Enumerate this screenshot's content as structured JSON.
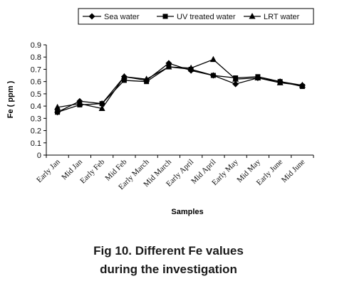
{
  "chart_data": {
    "type": "line",
    "categories": [
      "Early Jan",
      "Mid Jan",
      "Early Feb",
      "Mid Feb",
      "Early March",
      "Mid March",
      "Early April",
      "Mid April",
      "Early May",
      "Mid May",
      "Early June",
      "Mid June"
    ],
    "series": [
      {
        "name": "Sea water",
        "marker": "diamond",
        "values": [
          0.35,
          0.44,
          0.42,
          0.64,
          0.61,
          0.75,
          0.69,
          0.65,
          0.58,
          0.63,
          0.6,
          0.57
        ]
      },
      {
        "name": "UV treated water",
        "marker": "square",
        "values": [
          0.35,
          0.41,
          0.42,
          0.61,
          0.6,
          0.72,
          0.7,
          0.65,
          0.63,
          0.64,
          0.6,
          0.56
        ]
      },
      {
        "name": "LRT water",
        "marker": "triangle",
        "values": [
          0.39,
          0.42,
          0.38,
          0.64,
          0.62,
          0.72,
          0.71,
          0.78,
          0.62,
          0.63,
          0.59,
          0.57
        ]
      }
    ],
    "xlabel": "Samples",
    "ylabel": "Fe ( ppm )",
    "ylim": [
      0,
      0.9
    ],
    "yticks": [
      "0",
      "0.1",
      "0.2",
      "0.3",
      "0.4",
      "0.5",
      "0.6",
      "0.7",
      "0.8",
      "0.9"
    ],
    "grid": false,
    "legend_position": "top"
  },
  "caption": {
    "line1": "Fig 10. Different Fe values",
    "line2": "during the investigation"
  }
}
